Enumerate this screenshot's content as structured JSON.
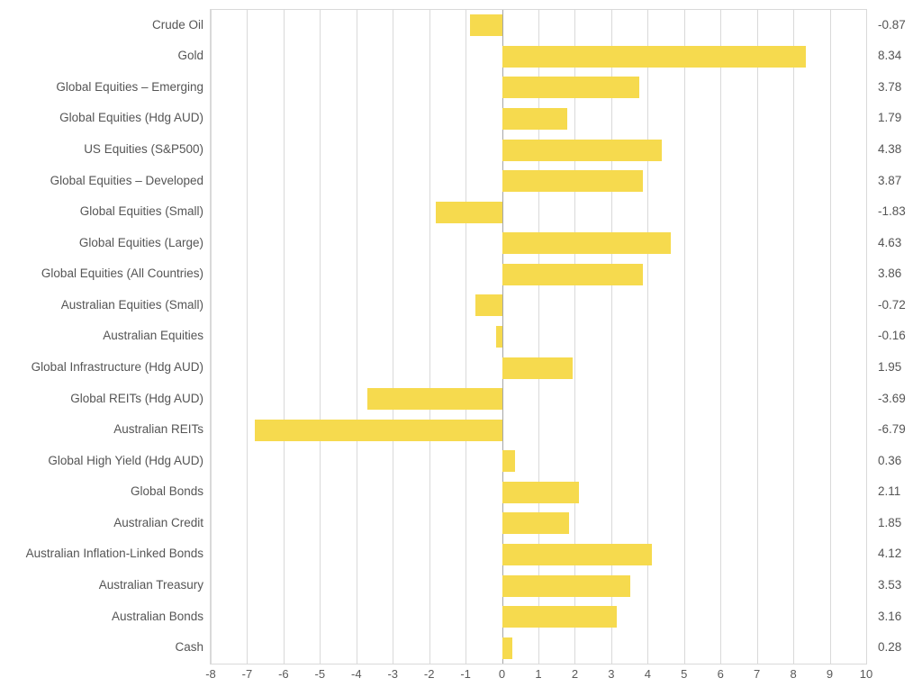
{
  "chart_data": {
    "type": "bar",
    "orientation": "horizontal",
    "categories": [
      "Crude Oil",
      "Gold",
      "Global Equities – Emerging",
      "Global Equities (Hdg AUD)",
      "US Equities (S&P500)",
      "Global Equities – Developed",
      "Global Equities (Small)",
      "Global Equities (Large)",
      "Global Equities (All Countries)",
      "Australian Equities (Small)",
      "Australian Equities",
      "Global Infrastructure (Hdg AUD)",
      "Global REITs (Hdg AUD)",
      "Australian REITs",
      "Global High Yield (Hdg AUD)",
      "Global Bonds",
      "Australian Credit",
      "Australian Inflation-Linked Bonds",
      "Australian Treasury",
      "Australian Bonds",
      "Cash"
    ],
    "values": [
      -0.87,
      8.34,
      3.78,
      1.79,
      4.38,
      3.87,
      -1.83,
      4.63,
      3.86,
      -0.72,
      -0.16,
      1.95,
      -3.69,
      -6.79,
      0.36,
      2.11,
      1.85,
      4.12,
      3.53,
      3.16,
      0.28
    ],
    "value_labels": [
      "-0.87",
      "8.34",
      "3.78",
      "1.79",
      "4.38",
      "3.87",
      "-1.83",
      "4.63",
      "3.86",
      "-0.72",
      "-0.16",
      "1.95",
      "-3.69",
      "-6.79",
      "0.36",
      "2.11",
      "1.85",
      "4.12",
      "3.53",
      "3.16",
      "0.28"
    ],
    "xlim": [
      -8,
      10
    ],
    "x_ticks": [
      -8,
      -7,
      -6,
      -5,
      -4,
      -3,
      -2,
      -1,
      0,
      1,
      2,
      3,
      4,
      5,
      6,
      7,
      8,
      9,
      10
    ],
    "grid": "vertical",
    "legend": false,
    "colors": {
      "bar": "#F6DA4E",
      "gridline": "#D9D9D9",
      "zero_line": "#A6A6A6",
      "plot_border": "#D9D9D9",
      "label_text": "#555555",
      "tick_text": "#595959"
    }
  }
}
